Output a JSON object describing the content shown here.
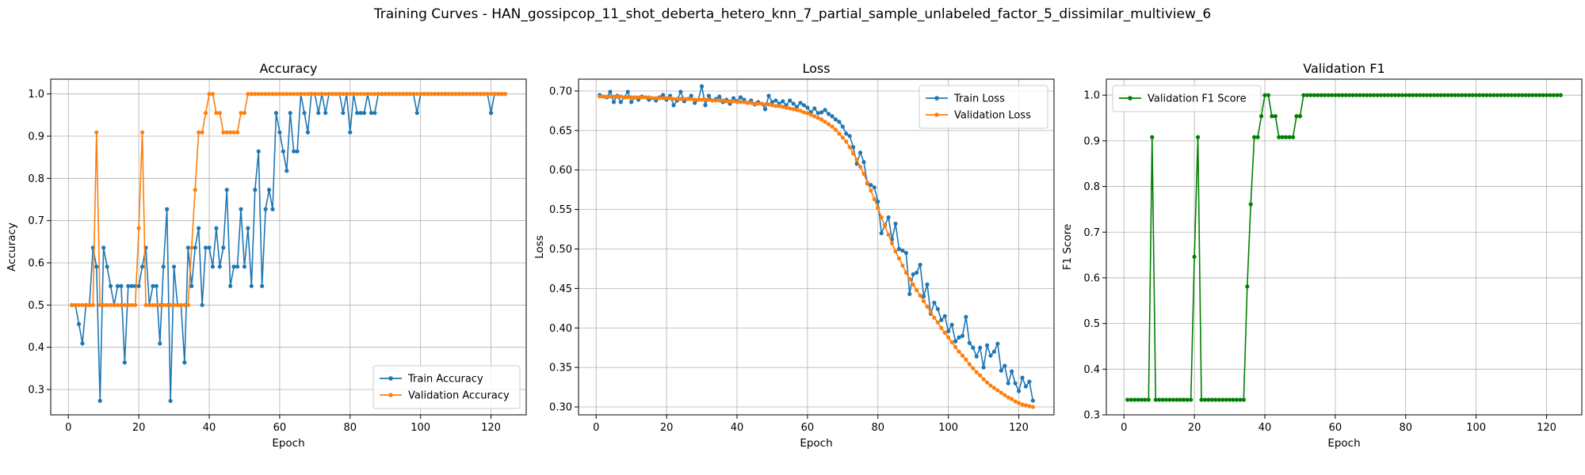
{
  "figure": {
    "title": "Training Curves - HAN_gossipcop_11_shot_deberta_hetero_knn_7_partial_sample_unlabeled_factor_5_dissimilar_multiview_6"
  },
  "chart_data": [
    {
      "type": "line",
      "title": "Accuracy",
      "xlabel": "Epoch",
      "ylabel": "Accuracy",
      "xlim": [
        -5,
        130
      ],
      "ylim": [
        0.24,
        1.035
      ],
      "xticks": [
        0,
        20,
        40,
        60,
        80,
        100,
        120
      ],
      "yticks": [
        0.3,
        0.4,
        0.5,
        0.6,
        0.7,
        0.8,
        0.9,
        1.0
      ],
      "tick_labels_x": [
        "0",
        "20",
        "40",
        "60",
        "80",
        "100",
        "120"
      ],
      "tick_labels_y": [
        "0.3",
        "0.4",
        "0.5",
        "0.6",
        "0.7",
        "0.8",
        "0.9",
        "1.0"
      ],
      "grid": true,
      "legend_position": "lower-right",
      "x": [
        1,
        2,
        3,
        4,
        5,
        6,
        7,
        8,
        9,
        10,
        11,
        12,
        13,
        14,
        15,
        16,
        17,
        18,
        19,
        20,
        21,
        22,
        23,
        24,
        25,
        26,
        27,
        28,
        29,
        30,
        31,
        32,
        33,
        34,
        35,
        36,
        37,
        38,
        39,
        40,
        41,
        42,
        43,
        44,
        45,
        46,
        47,
        48,
        49,
        50,
        51,
        52,
        53,
        54,
        55,
        56,
        57,
        58,
        59,
        60,
        61,
        62,
        63,
        64,
        65,
        66,
        67,
        68,
        69,
        70,
        71,
        72,
        73,
        74,
        75,
        76,
        77,
        78,
        79,
        80,
        81,
        82,
        83,
        84,
        85,
        86,
        87,
        88,
        89,
        90,
        91,
        92,
        93,
        94,
        95,
        96,
        97,
        98,
        99,
        100,
        101,
        102,
        103,
        104,
        105,
        106,
        107,
        108,
        109,
        110,
        111,
        112,
        113,
        114,
        115,
        116,
        117,
        118,
        119,
        120,
        121,
        122,
        123,
        124
      ],
      "series": [
        {
          "name": "Train Accuracy",
          "color": "#1f77b4",
          "values": [
            0.5,
            0.5,
            0.455,
            0.409,
            0.5,
            0.5,
            0.636,
            0.591,
            0.273,
            0.636,
            0.591,
            0.545,
            0.5,
            0.545,
            0.545,
            0.364,
            0.545,
            0.545,
            0.545,
            0.545,
            0.591,
            0.636,
            0.5,
            0.545,
            0.545,
            0.409,
            0.591,
            0.727,
            0.273,
            0.591,
            0.5,
            0.5,
            0.364,
            0.636,
            0.545,
            0.636,
            0.682,
            0.5,
            0.636,
            0.636,
            0.591,
            0.682,
            0.591,
            0.636,
            0.773,
            0.545,
            0.591,
            0.591,
            0.727,
            0.591,
            0.682,
            0.545,
            0.773,
            0.864,
            0.545,
            0.727,
            0.773,
            0.727,
            0.955,
            0.909,
            0.864,
            0.818,
            0.955,
            0.864,
            0.864,
            1.0,
            0.955,
            0.909,
            1.0,
            1.0,
            0.955,
            1.0,
            0.955,
            1.0,
            1.0,
            1.0,
            1.0,
            0.955,
            1.0,
            0.909,
            1.0,
            0.955,
            0.955,
            0.955,
            1.0,
            0.955,
            0.955,
            1.0,
            1.0,
            1.0,
            1.0,
            1.0,
            1.0,
            1.0,
            1.0,
            1.0,
            1.0,
            1.0,
            0.955,
            1.0,
            1.0,
            1.0,
            1.0,
            1.0,
            1.0,
            1.0,
            1.0,
            1.0,
            1.0,
            1.0,
            1.0,
            1.0,
            1.0,
            1.0,
            1.0,
            1.0,
            1.0,
            1.0,
            1.0,
            0.955,
            1.0,
            1.0,
            1.0,
            1.0
          ]
        },
        {
          "name": "Validation Accuracy",
          "color": "#ff7f0e",
          "values": [
            0.5,
            0.5,
            0.5,
            0.5,
            0.5,
            0.5,
            0.5,
            0.909,
            0.5,
            0.5,
            0.5,
            0.5,
            0.5,
            0.5,
            0.5,
            0.5,
            0.5,
            0.5,
            0.5,
            0.682,
            0.909,
            0.5,
            0.5,
            0.5,
            0.5,
            0.5,
            0.5,
            0.5,
            0.5,
            0.5,
            0.5,
            0.5,
            0.5,
            0.5,
            0.636,
            0.773,
            0.909,
            0.909,
            0.955,
            1.0,
            1.0,
            0.955,
            0.955,
            0.909,
            0.909,
            0.909,
            0.909,
            0.909,
            0.955,
            0.955,
            1.0,
            1.0,
            1.0,
            1.0,
            1.0,
            1.0,
            1.0,
            1.0,
            1.0,
            1.0,
            1.0,
            1.0,
            1.0,
            1.0,
            1.0,
            1.0,
            1.0,
            1.0,
            1.0,
            1.0,
            1.0,
            1.0,
            1.0,
            1.0,
            1.0,
            1.0,
            1.0,
            1.0,
            1.0,
            1.0,
            1.0,
            1.0,
            1.0,
            1.0,
            1.0,
            1.0,
            1.0,
            1.0,
            1.0,
            1.0,
            1.0,
            1.0,
            1.0,
            1.0,
            1.0,
            1.0,
            1.0,
            1.0,
            1.0,
            1.0,
            1.0,
            1.0,
            1.0,
            1.0,
            1.0,
            1.0,
            1.0,
            1.0,
            1.0,
            1.0,
            1.0,
            1.0,
            1.0,
            1.0,
            1.0,
            1.0,
            1.0,
            1.0,
            1.0,
            1.0,
            1.0,
            1.0,
            1.0,
            1.0
          ]
        }
      ]
    },
    {
      "type": "line",
      "title": "Loss",
      "xlabel": "Epoch",
      "ylabel": "Loss",
      "xlim": [
        -5,
        130
      ],
      "ylim": [
        0.29,
        0.715
      ],
      "xticks": [
        0,
        20,
        40,
        60,
        80,
        100,
        120
      ],
      "yticks": [
        0.3,
        0.35,
        0.4,
        0.45,
        0.5,
        0.55,
        0.6,
        0.65,
        0.7
      ],
      "tick_labels_x": [
        "0",
        "20",
        "40",
        "60",
        "80",
        "100",
        "120"
      ],
      "tick_labels_y": [
        "0.30",
        "0.35",
        "0.40",
        "0.45",
        "0.50",
        "0.55",
        "0.60",
        "0.65",
        "0.70"
      ],
      "grid": true,
      "legend_position": "upper-right",
      "x": [
        1,
        2,
        3,
        4,
        5,
        6,
        7,
        8,
        9,
        10,
        11,
        12,
        13,
        14,
        15,
        16,
        17,
        18,
        19,
        20,
        21,
        22,
        23,
        24,
        25,
        26,
        27,
        28,
        29,
        30,
        31,
        32,
        33,
        34,
        35,
        36,
        37,
        38,
        39,
        40,
        41,
        42,
        43,
        44,
        45,
        46,
        47,
        48,
        49,
        50,
        51,
        52,
        53,
        54,
        55,
        56,
        57,
        58,
        59,
        60,
        61,
        62,
        63,
        64,
        65,
        66,
        67,
        68,
        69,
        70,
        71,
        72,
        73,
        74,
        75,
        76,
        77,
        78,
        79,
        80,
        81,
        82,
        83,
        84,
        85,
        86,
        87,
        88,
        89,
        90,
        91,
        92,
        93,
        94,
        95,
        96,
        97,
        98,
        99,
        100,
        101,
        102,
        103,
        104,
        105,
        106,
        107,
        108,
        109,
        110,
        111,
        112,
        113,
        114,
        115,
        116,
        117,
        118,
        119,
        120,
        121,
        122,
        123,
        124
      ],
      "series": [
        {
          "name": "Train Loss",
          "color": "#1f77b4",
          "values": [
            0.695,
            0.693,
            0.692,
            0.699,
            0.686,
            0.694,
            0.686,
            0.692,
            0.699,
            0.686,
            0.692,
            0.689,
            0.693,
            0.692,
            0.689,
            0.691,
            0.688,
            0.692,
            0.695,
            0.689,
            0.694,
            0.682,
            0.688,
            0.699,
            0.687,
            0.69,
            0.694,
            0.685,
            0.689,
            0.706,
            0.682,
            0.694,
            0.688,
            0.69,
            0.693,
            0.686,
            0.689,
            0.684,
            0.691,
            0.687,
            0.692,
            0.689,
            0.685,
            0.688,
            0.683,
            0.686,
            0.684,
            0.677,
            0.694,
            0.686,
            0.688,
            0.684,
            0.687,
            0.682,
            0.688,
            0.684,
            0.68,
            0.685,
            0.682,
            0.679,
            0.673,
            0.678,
            0.672,
            0.673,
            0.676,
            0.671,
            0.668,
            0.664,
            0.661,
            0.655,
            0.646,
            0.643,
            0.629,
            0.608,
            0.622,
            0.61,
            0.583,
            0.581,
            0.578,
            0.56,
            0.52,
            0.53,
            0.54,
            0.512,
            0.532,
            0.5,
            0.498,
            0.495,
            0.443,
            0.468,
            0.47,
            0.48,
            0.44,
            0.455,
            0.418,
            0.432,
            0.424,
            0.41,
            0.415,
            0.396,
            0.404,
            0.383,
            0.388,
            0.39,
            0.414,
            0.381,
            0.375,
            0.364,
            0.375,
            0.35,
            0.378,
            0.365,
            0.37,
            0.38,
            0.346,
            0.352,
            0.33,
            0.345,
            0.33,
            0.32,
            0.337,
            0.326,
            0.332,
            0.308
          ]
        },
        {
          "name": "Validation Loss",
          "color": "#ff7f0e",
          "values": [
            0.693,
            0.693,
            0.693,
            0.693,
            0.693,
            0.693,
            0.693,
            0.692,
            0.692,
            0.692,
            0.692,
            0.692,
            0.692,
            0.692,
            0.692,
            0.691,
            0.691,
            0.691,
            0.691,
            0.691,
            0.691,
            0.69,
            0.69,
            0.69,
            0.69,
            0.69,
            0.69,
            0.689,
            0.689,
            0.689,
            0.689,
            0.689,
            0.688,
            0.688,
            0.688,
            0.688,
            0.687,
            0.687,
            0.687,
            0.686,
            0.686,
            0.686,
            0.685,
            0.685,
            0.684,
            0.684,
            0.684,
            0.683,
            0.683,
            0.682,
            0.681,
            0.681,
            0.68,
            0.679,
            0.678,
            0.677,
            0.676,
            0.675,
            0.673,
            0.672,
            0.67,
            0.668,
            0.666,
            0.664,
            0.661,
            0.658,
            0.655,
            0.651,
            0.646,
            0.641,
            0.636,
            0.629,
            0.621,
            0.613,
            0.604,
            0.595,
            0.584,
            0.574,
            0.563,
            0.552,
            0.54,
            0.529,
            0.518,
            0.507,
            0.497,
            0.488,
            0.479,
            0.47,
            0.462,
            0.455,
            0.448,
            0.441,
            0.434,
            0.427,
            0.42,
            0.413,
            0.407,
            0.4,
            0.394,
            0.388,
            0.382,
            0.376,
            0.37,
            0.365,
            0.36,
            0.354,
            0.349,
            0.344,
            0.34,
            0.335,
            0.331,
            0.327,
            0.324,
            0.321,
            0.318,
            0.315,
            0.312,
            0.31,
            0.307,
            0.305,
            0.303,
            0.302,
            0.301,
            0.3
          ]
        }
      ]
    },
    {
      "type": "line",
      "title": "Validation F1",
      "xlabel": "Epoch",
      "ylabel": "F1 Score",
      "xlim": [
        -5,
        130
      ],
      "ylim": [
        0.3,
        1.035
      ],
      "xticks": [
        0,
        20,
        40,
        60,
        80,
        100,
        120
      ],
      "yticks": [
        0.3,
        0.4,
        0.5,
        0.6,
        0.7,
        0.8,
        0.9,
        1.0
      ],
      "tick_labels_x": [
        "0",
        "20",
        "40",
        "60",
        "80",
        "100",
        "120"
      ],
      "tick_labels_y": [
        "0.3",
        "0.4",
        "0.5",
        "0.6",
        "0.7",
        "0.8",
        "0.9",
        "1.0"
      ],
      "grid": true,
      "legend_position": "upper-left",
      "x": [
        1,
        2,
        3,
        4,
        5,
        6,
        7,
        8,
        9,
        10,
        11,
        12,
        13,
        14,
        15,
        16,
        17,
        18,
        19,
        20,
        21,
        22,
        23,
        24,
        25,
        26,
        27,
        28,
        29,
        30,
        31,
        32,
        33,
        34,
        35,
        36,
        37,
        38,
        39,
        40,
        41,
        42,
        43,
        44,
        45,
        46,
        47,
        48,
        49,
        50,
        51,
        52,
        53,
        54,
        55,
        56,
        57,
        58,
        59,
        60,
        61,
        62,
        63,
        64,
        65,
        66,
        67,
        68,
        69,
        70,
        71,
        72,
        73,
        74,
        75,
        76,
        77,
        78,
        79,
        80,
        81,
        82,
        83,
        84,
        85,
        86,
        87,
        88,
        89,
        90,
        91,
        92,
        93,
        94,
        95,
        96,
        97,
        98,
        99,
        100,
        101,
        102,
        103,
        104,
        105,
        106,
        107,
        108,
        109,
        110,
        111,
        112,
        113,
        114,
        115,
        116,
        117,
        118,
        119,
        120,
        121,
        122,
        123,
        124
      ],
      "series": [
        {
          "name": "Validation F1 Score",
          "color": "#008000",
          "values": [
            0.333,
            0.333,
            0.333,
            0.333,
            0.333,
            0.333,
            0.333,
            0.908,
            0.333,
            0.333,
            0.333,
            0.333,
            0.333,
            0.333,
            0.333,
            0.333,
            0.333,
            0.333,
            0.333,
            0.646,
            0.908,
            0.333,
            0.333,
            0.333,
            0.333,
            0.333,
            0.333,
            0.333,
            0.333,
            0.333,
            0.333,
            0.333,
            0.333,
            0.333,
            0.581,
            0.761,
            0.908,
            0.908,
            0.954,
            1.0,
            1.0,
            0.954,
            0.954,
            0.908,
            0.908,
            0.908,
            0.908,
            0.908,
            0.954,
            0.954,
            1.0,
            1.0,
            1.0,
            1.0,
            1.0,
            1.0,
            1.0,
            1.0,
            1.0,
            1.0,
            1.0,
            1.0,
            1.0,
            1.0,
            1.0,
            1.0,
            1.0,
            1.0,
            1.0,
            1.0,
            1.0,
            1.0,
            1.0,
            1.0,
            1.0,
            1.0,
            1.0,
            1.0,
            1.0,
            1.0,
            1.0,
            1.0,
            1.0,
            1.0,
            1.0,
            1.0,
            1.0,
            1.0,
            1.0,
            1.0,
            1.0,
            1.0,
            1.0,
            1.0,
            1.0,
            1.0,
            1.0,
            1.0,
            1.0,
            1.0,
            1.0,
            1.0,
            1.0,
            1.0,
            1.0,
            1.0,
            1.0,
            1.0,
            1.0,
            1.0,
            1.0,
            1.0,
            1.0,
            1.0,
            1.0,
            1.0,
            1.0,
            1.0,
            1.0,
            1.0,
            1.0,
            1.0,
            1.0,
            1.0
          ]
        }
      ]
    }
  ]
}
